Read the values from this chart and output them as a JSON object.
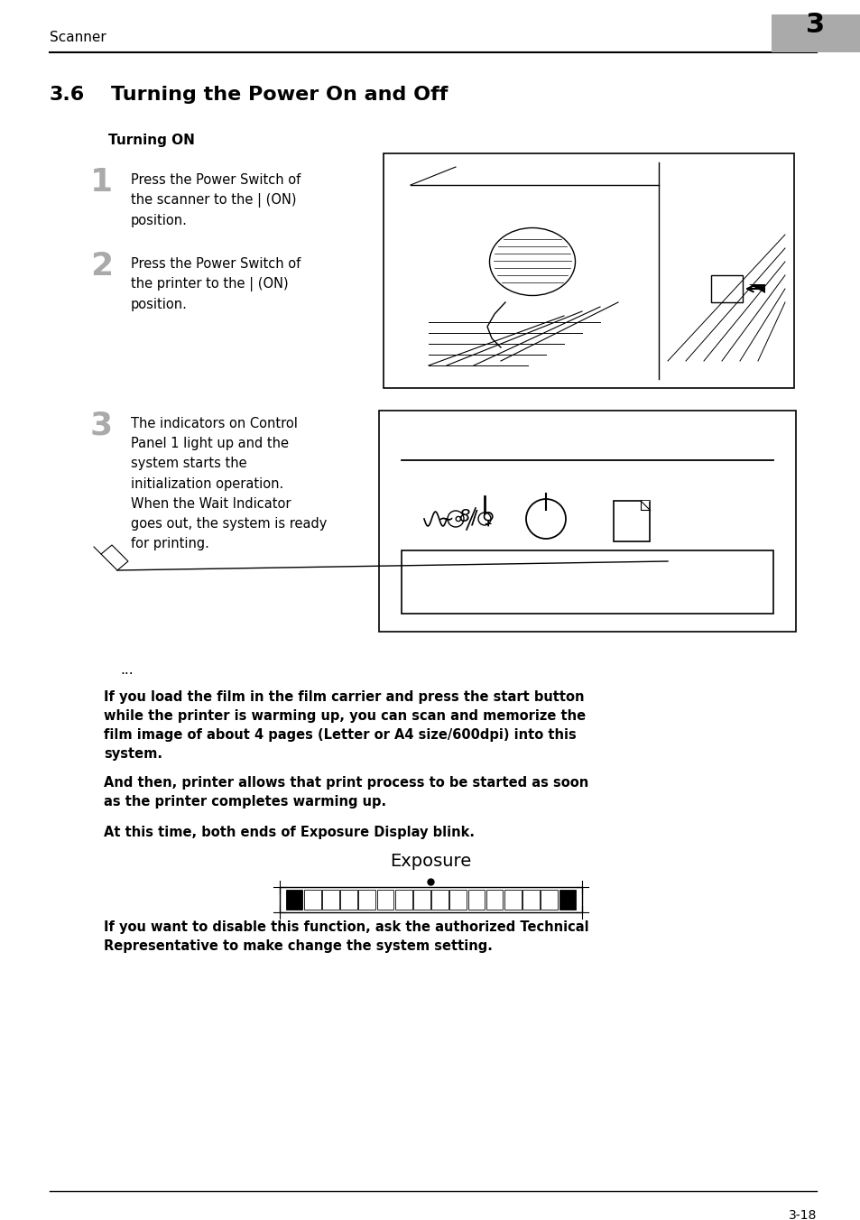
{
  "bg_color": "#ffffff",
  "header_text": "Scanner",
  "header_number": "3",
  "header_number_bg": "#aaaaaa",
  "title_prefix": "3.6",
  "title_main": "Turning the Power On and Off",
  "subtitle": "Turning ON",
  "step1_num": "1",
  "step1_text": "Press the Power Switch of\nthe scanner to the | (ON)\nposition.",
  "step2_num": "2",
  "step2_text": "Press the Power Switch of\nthe printer to the | (ON)\nposition.",
  "step3_num": "3",
  "step3_text": "The indicators on Control\nPanel 1 light up and the\nsystem starts the\ninitialization operation.\nWhen the Wait Indicator\ngoes out, the system is ready\nfor printing.",
  "note_text1": "If you load the film in the film carrier and press the start button\nwhile the printer is warming up, you can scan and memorize the\nfilm image of about 4 pages (Letter or A4 size/600dpi) into this\nsystem.",
  "note_text2": "And then, printer allows that print process to be started as soon\nas the printer completes warming up.",
  "note_text3": "At this time, both ends of Exposure Display blink.",
  "exposure_label": "Exposure",
  "footer_text": "If you want to disable this function, ask the authorized Technical\nRepresentative to make change the system setting.",
  "page_number": "3-18"
}
